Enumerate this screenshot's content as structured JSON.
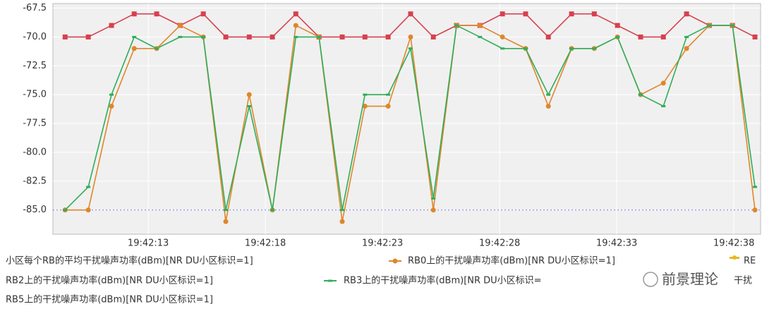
{
  "chart_data": {
    "type": "line",
    "x": [
      9.45,
      10.44,
      11.43,
      12.4,
      13.36,
      14.36,
      15.35,
      16.31,
      17.31,
      18.3,
      19.3,
      20.29,
      21.28,
      22.25,
      23.24,
      24.2,
      25.17,
      26.16,
      27.16,
      28.12,
      29.11,
      30.08,
      31.07,
      32.04,
      33.03,
      34.02,
      34.99,
      35.98,
      36.95,
      37.94,
      38.9
    ],
    "series": [
      {
        "name": "小区每个RB的平均干扰噪声功率(dBm)[NR DU小区标识=1]",
        "color": "#d8404e",
        "marker": "square",
        "values": [
          -70,
          -70,
          -69,
          -68,
          -68,
          -69,
          -68,
          -70,
          -70,
          -70,
          -68,
          -70,
          -70,
          -70,
          -70,
          -68,
          -70,
          -69,
          -69,
          -68,
          -68,
          -70,
          -68,
          -68,
          -69,
          -70,
          -70,
          -68,
          -69,
          -69,
          -70
        ]
      },
      {
        "name": "RB0上的干扰噪声功率(dBm)[NR DU小区标识=1]",
        "color": "#e0862a",
        "marker": "circle",
        "values": [
          -85,
          -85,
          -76,
          -71,
          -71,
          -69,
          -70,
          -86,
          -75,
          -85,
          -69,
          -70,
          -86,
          -76,
          -76,
          -70,
          -85,
          -69,
          -69,
          -70,
          -71,
          -76,
          -71,
          -71,
          -70,
          -75,
          -74,
          -71,
          -69,
          -69,
          -85
        ]
      },
      {
        "name": "RB3上的干扰噪声功率(dBm)[NR DU小区标识=",
        "color": "#2fae5a",
        "marker": "dash",
        "values": [
          -85,
          -83,
          -75,
          -70,
          -71,
          -70,
          -70,
          -85,
          -76,
          -85,
          -70,
          -70,
          -85,
          -75,
          -75,
          -71,
          -84,
          -69,
          -70,
          -71,
          -71,
          -75,
          -71,
          -71,
          -70,
          -75,
          -76,
          -70,
          -69,
          -69,
          -83
        ]
      }
    ],
    "reference_line": {
      "value": -85,
      "color": "#9a9aee"
    },
    "legend_texts": [
      "RE",
      "RB2上的干扰噪声功率(dBm)[NR DU小区标识=1]",
      "干扰",
      "RB5上的干扰噪声功率(dBm)[NR DU小区标识=1]"
    ],
    "watermark": "前景理论",
    "xlim": [
      8.93,
      39.14
    ],
    "xticks": [
      {
        "value": 13,
        "label": "19:42:13"
      },
      {
        "value": 18,
        "label": "19:42:18"
      },
      {
        "value": 23,
        "label": "19:42:23"
      },
      {
        "value": 28,
        "label": "19:42:28"
      },
      {
        "value": 33,
        "label": "19:42:33"
      },
      {
        "value": 38,
        "label": "19:42:38"
      }
    ],
    "ylim": [
      -87.1,
      -67.1
    ],
    "yticks": [
      {
        "value": -67.5,
        "label": "-67.5"
      },
      {
        "value": -70,
        "label": "-70.0"
      },
      {
        "value": -72.5,
        "label": "-72.5"
      },
      {
        "value": -75,
        "label": "-75.0"
      },
      {
        "value": -77.5,
        "label": "-77.5"
      },
      {
        "value": -80,
        "label": "-80.0"
      },
      {
        "value": -82.5,
        "label": "-82.5"
      },
      {
        "value": -85,
        "label": "-85.0"
      }
    ],
    "grid": true
  }
}
